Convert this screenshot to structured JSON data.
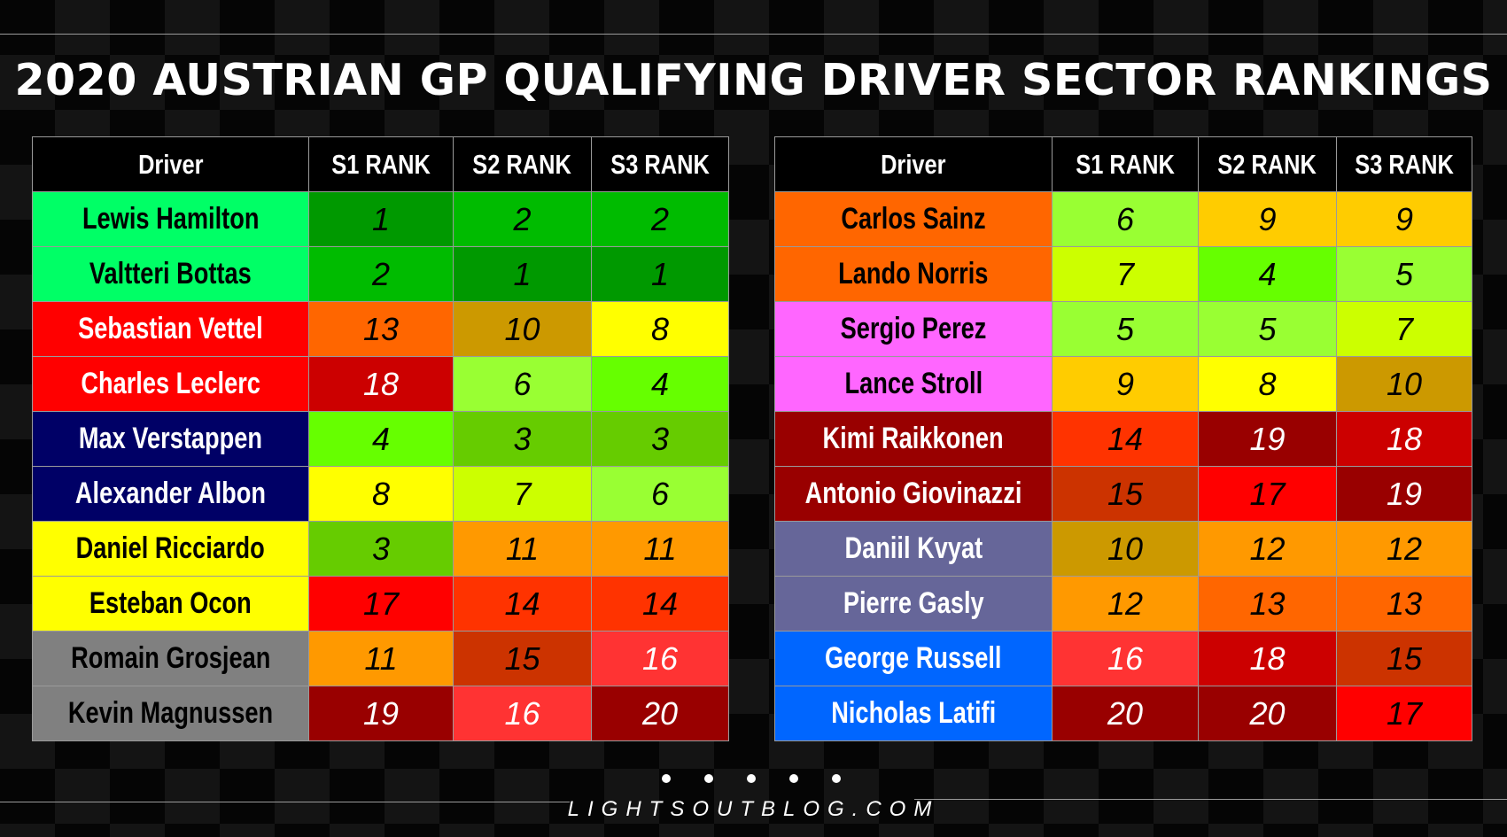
{
  "title": "2020 AUSTRIAN GP QUALIFYING DRIVER SECTOR RANKINGS",
  "footer": "LIGHTSOUTBLOG.COM",
  "chart_data": {
    "type": "table",
    "columns": [
      "Driver",
      "S1 RANK",
      "S2 RANK",
      "S3 RANK"
    ],
    "tables": [
      {
        "rows": [
          {
            "driver": "Lewis Hamilton",
            "team_color": "#00ff66",
            "text_color": "#000000",
            "s1": 1,
            "s2": 2,
            "s3": 2
          },
          {
            "driver": "Valtteri Bottas",
            "team_color": "#00ff66",
            "text_color": "#000000",
            "s1": 2,
            "s2": 1,
            "s3": 1
          },
          {
            "driver": "Sebastian Vettel",
            "team_color": "#ff0000",
            "text_color": "#ffffff",
            "s1": 13,
            "s2": 10,
            "s3": 8
          },
          {
            "driver": "Charles Leclerc",
            "team_color": "#ff0000",
            "text_color": "#ffffff",
            "s1": 18,
            "s2": 6,
            "s3": 4
          },
          {
            "driver": "Max Verstappen",
            "team_color": "#000066",
            "text_color": "#ffffff",
            "s1": 4,
            "s2": 3,
            "s3": 3
          },
          {
            "driver": "Alexander Albon",
            "team_color": "#000066",
            "text_color": "#ffffff",
            "s1": 8,
            "s2": 7,
            "s3": 6
          },
          {
            "driver": "Daniel Ricciardo",
            "team_color": "#ffff00",
            "text_color": "#000000",
            "s1": 3,
            "s2": 11,
            "s3": 11
          },
          {
            "driver": "Esteban Ocon",
            "team_color": "#ffff00",
            "text_color": "#000000",
            "s1": 17,
            "s2": 14,
            "s3": 14
          },
          {
            "driver": "Romain Grosjean",
            "team_color": "#808080",
            "text_color": "#000000",
            "s1": 11,
            "s2": 15,
            "s3": 16
          },
          {
            "driver": "Kevin Magnussen",
            "team_color": "#808080",
            "text_color": "#000000",
            "s1": 19,
            "s2": 16,
            "s3": 20
          }
        ]
      },
      {
        "rows": [
          {
            "driver": "Carlos Sainz",
            "team_color": "#ff6600",
            "text_color": "#000000",
            "s1": 6,
            "s2": 9,
            "s3": 9
          },
          {
            "driver": "Lando Norris",
            "team_color": "#ff6600",
            "text_color": "#000000",
            "s1": 7,
            "s2": 4,
            "s3": 5
          },
          {
            "driver": "Sergio Perez",
            "team_color": "#ff66ff",
            "text_color": "#000000",
            "s1": 5,
            "s2": 5,
            "s3": 7
          },
          {
            "driver": "Lance Stroll",
            "team_color": "#ff66ff",
            "text_color": "#000000",
            "s1": 9,
            "s2": 8,
            "s3": 10
          },
          {
            "driver": "Kimi Raikkonen",
            "team_color": "#990000",
            "text_color": "#ffffff",
            "s1": 14,
            "s2": 19,
            "s3": 18
          },
          {
            "driver": "Antonio Giovinazzi",
            "team_color": "#990000",
            "text_color": "#ffffff",
            "s1": 15,
            "s2": 17,
            "s3": 19
          },
          {
            "driver": "Daniil Kvyat",
            "team_color": "#666699",
            "text_color": "#ffffff",
            "s1": 10,
            "s2": 12,
            "s3": 12
          },
          {
            "driver": "Pierre Gasly",
            "team_color": "#666699",
            "text_color": "#ffffff",
            "s1": 12,
            "s2": 13,
            "s3": 13
          },
          {
            "driver": "George Russell",
            "team_color": "#0066ff",
            "text_color": "#ffffff",
            "s1": 16,
            "s2": 18,
            "s3": 15
          },
          {
            "driver": "Nicholas Latifi",
            "team_color": "#0066ff",
            "text_color": "#ffffff",
            "s1": 20,
            "s2": 20,
            "s3": 17
          }
        ]
      }
    ],
    "rank_colors": {
      "1": "#009900",
      "2": "#00bb00",
      "3": "#66cc00",
      "4": "#66ff00",
      "5": "#99ff33",
      "6": "#99ff33",
      "7": "#ccff00",
      "8": "#ffff00",
      "9": "#ffcc00",
      "10": "#cc9900",
      "11": "#ff9900",
      "12": "#ff9900",
      "13": "#ff6600",
      "14": "#ff3300",
      "15": "#cc3300",
      "16": "#ff3333",
      "17": "#ff0000",
      "18": "#cc0000",
      "19": "#990000",
      "20": "#990000"
    },
    "rank_text_colors": {
      "1": "#000000",
      "2": "#000000",
      "3": "#000000",
      "4": "#000000",
      "5": "#000000",
      "6": "#000000",
      "7": "#000000",
      "8": "#000000",
      "9": "#000000",
      "10": "#000000",
      "11": "#000000",
      "12": "#000000",
      "13": "#000000",
      "14": "#000000",
      "15": "#000000",
      "16": "#ffffff",
      "17": "#000000",
      "18": "#ffffff",
      "19": "#ffffff",
      "20": "#ffffff"
    }
  }
}
